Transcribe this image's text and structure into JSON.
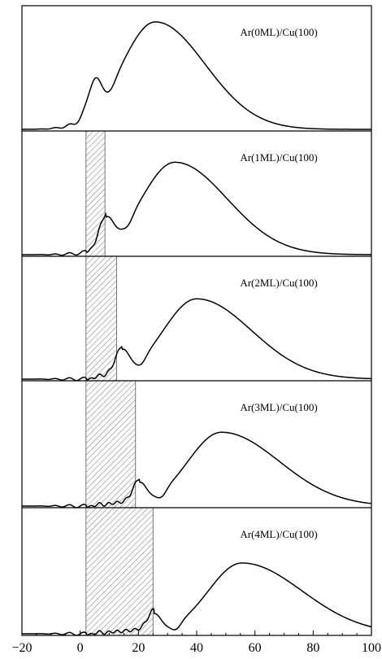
{
  "chart_data": {
    "type": "line",
    "xlim": [
      -20,
      100
    ],
    "x_ticks": [
      -20,
      0,
      20,
      40,
      60,
      80,
      100
    ],
    "x_tick_labels": [
      "−20",
      "0",
      "20",
      "40",
      "60",
      "80",
      "100"
    ],
    "xlabel": "",
    "ylabel": "",
    "y_ticks_shown": false,
    "grid": false,
    "panels": [
      {
        "label": "Ar(0ML)/Cu(100)",
        "shaded_region": null,
        "main_peak": {
          "x": 25.8,
          "height": 0.93
        },
        "small_peak": {
          "x": 4.8,
          "height": 0.26
        },
        "dip_x": 10.5
      },
      {
        "label": "Ar(1ML)/Cu(100)",
        "shaded_region": [
          2.0,
          8.5
        ],
        "main_peak": {
          "x": 32.5,
          "height": 0.8
        },
        "small_peak": {
          "x": 9.0,
          "height": 0.23
        },
        "dip_x": 16.5
      },
      {
        "label": "Ar(2ML)/Cu(100)",
        "shaded_region": [
          2.0,
          12.5
        ],
        "main_peak": {
          "x": 40.0,
          "height": 0.7
        },
        "small_peak": {
          "x": 14.5,
          "height": 0.2
        },
        "dip_x": 21.0
      },
      {
        "label": "Ar(3ML)/Cu(100)",
        "shaded_region": [
          2.0,
          19.0
        ],
        "main_peak": {
          "x": 48.5,
          "height": 0.63
        },
        "small_peak": {
          "x": 20.5,
          "height": 0.17
        },
        "dip_x": 28.0
      },
      {
        "label": "Ar(4ML)/Cu(100)",
        "shaded_region": [
          2.0,
          25.0
        ],
        "main_peak": {
          "x": 55.5,
          "height": 0.6
        },
        "small_peak": {
          "x": 25.5,
          "height": 0.15
        },
        "dip_x": 33.0
      }
    ]
  }
}
